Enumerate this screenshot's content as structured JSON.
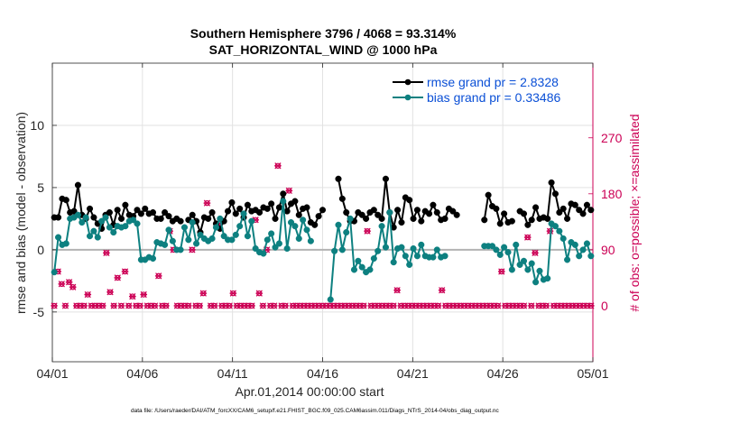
{
  "chart_data": {
    "type": "line",
    "title_line1": "Southern Hemisphere 3796 / 4068 = 93.314%",
    "title_line2": "SAT_HORIZONTAL_WIND @ 1000 hPa",
    "xlabel": "Apr.01,2014 00:00:00 start",
    "ylabel_left": "rmse and bias (model - observation)",
    "ylabel_right": "# of obs: o=possible; ×=assimilated",
    "footnote": "data file: /Users/raeder/DAI/ATM_forcXX/CAM6_setup/f.e21.FHIST_BGC.f09_025.CAM6assim.011/Diags_NTrS_2014-04/obs_diag_output.nc",
    "x_range": [
      0,
      30
    ],
    "ylim_left": [
      -9,
      15
    ],
    "ylim_right": [
      -90,
      390
    ],
    "x_tick_values": [
      0,
      5,
      10,
      15,
      20,
      25,
      30
    ],
    "x_tick_labels": [
      "04/01",
      "04/06",
      "04/11",
      "04/16",
      "04/21",
      "04/26",
      "05/01"
    ],
    "y_tick_values": [
      -5,
      0,
      5,
      10
    ],
    "y_tick_labels": [
      "-5",
      "0",
      "5",
      "10"
    ],
    "y2_tick_values": [
      0,
      90,
      180,
      270
    ],
    "y2_tick_labels": [
      "0",
      "90",
      "180",
      "270"
    ],
    "grid": true,
    "legend_position": "top-right",
    "colors": {
      "rmse": "#000000",
      "bias": "#0d8080",
      "obs": "#cc0055",
      "zero_line": "#b3b3b3"
    },
    "series": [
      {
        "name": "rmse grand pr = 2.8328",
        "axis": "left",
        "style": "line-marker",
        "values": [
          2.6,
          2.6,
          4.1,
          4.0,
          3.0,
          3.1,
          5.2,
          2.8,
          2.5,
          3.3,
          2.6,
          2.1,
          1.7,
          2.8,
          3.0,
          2.0,
          3.2,
          2.5,
          3.6,
          2.8,
          2.7,
          3.2,
          2.9,
          3.3,
          2.9,
          3.0,
          2.5,
          2.5,
          3.0,
          2.7,
          2.3,
          2.5,
          2.3,
          null,
          2.4,
          2.8,
          2.3,
          1.4,
          2.6,
          2.5,
          3.0,
          2.1,
          1.7,
          2.3,
          3.1,
          3.8,
          2.9,
          3.3,
          2.6,
          3.6,
          3.1,
          3.2,
          3.0,
          3.4,
          3.3,
          3.7,
          2.5,
          3.4,
          4.5,
          3.1,
          3.7,
          3.9,
          2.8,
          3.3,
          3.4,
          2.2,
          2.0,
          2.7,
          3.2,
          null,
          null,
          null,
          5.7,
          4.1,
          3.0,
          2.3,
          2.3,
          3.0,
          2.8,
          2.5,
          3.0,
          3.2,
          2.8,
          2.5,
          5.7,
          3.0,
          1.8,
          3.2,
          2.2,
          4.2,
          4.0,
          2.5,
          3.2,
          2.3,
          3.1,
          2.9,
          3.6,
          3.0,
          2.4,
          2.5,
          3.3,
          3.1,
          2.8,
          null,
          null,
          null,
          null,
          null,
          null,
          2.4,
          4.4,
          3.5,
          3.3,
          2.1,
          2.9,
          2.2,
          2.3,
          null,
          3.1,
          2.9,
          2.0,
          2.4,
          3.4,
          2.5,
          2.6,
          2.5,
          5.4,
          4.5,
          3.0,
          3.3,
          2.5,
          3.7,
          3.6,
          3.2,
          2.9,
          3.6,
          3.2
        ]
      },
      {
        "name": "bias grand pr = 0.33486",
        "axis": "left",
        "style": "line-marker",
        "values": [
          -1.8,
          1.0,
          0.4,
          0.5,
          2.5,
          2.6,
          2.8,
          2.2,
          2.6,
          1.1,
          1.5,
          1.0,
          2.3,
          2.6,
          1.8,
          1.4,
          1.9,
          1.8,
          1.9,
          2.3,
          2.4,
          2.1,
          -0.8,
          -0.8,
          -0.6,
          -0.7,
          0.6,
          0.5,
          0.4,
          1.6,
          0.7,
          0.0,
          0.0,
          1.8,
          0.8,
          2.2,
          0.5,
          1.2,
          0.9,
          0.7,
          0.9,
          1.8,
          2.5,
          1.1,
          0.8,
          0.8,
          1.2,
          1.9,
          2.9,
          1.1,
          2.3,
          0.1,
          -0.2,
          -0.3,
          0.8,
          1.3,
          0.2,
          0.5,
          3.9,
          0.1,
          2.2,
          1.9,
          0.9,
          2.4,
          1.6,
          0.7,
          null,
          null,
          null,
          null,
          -4.0,
          -0.1,
          2.0,
          0.0,
          1.4,
          2.5,
          -1.6,
          -0.9,
          -1.4,
          -1.8,
          -1.6,
          -0.7,
          -0.1,
          1.9,
          0.2,
          3.0,
          -1.0,
          0.1,
          0.2,
          -0.5,
          -1.2,
          0.1,
          -0.5,
          0.4,
          -0.5,
          -0.6,
          -0.6,
          0.0,
          -0.6,
          -0.5,
          null,
          null,
          null,
          null,
          null,
          null,
          null,
          null,
          null,
          0.3,
          0.3,
          0.3,
          0.0,
          -0.4,
          0.2,
          -0.2,
          -1.6,
          0.4,
          -1.2,
          -0.9,
          -1.6,
          -1.1,
          -2.6,
          -1.7,
          -2.4,
          -2.3,
          2.1,
          1.9,
          1.5,
          0.9,
          -0.8,
          0.6,
          0.4,
          -0.5,
          0.0,
          0.5,
          -0.5
        ]
      },
      {
        "name": "possible",
        "axis": "right",
        "style": "circle",
        "values": [
          0,
          55,
          35,
          0,
          38,
          30,
          0,
          0,
          0,
          18,
          0,
          0,
          0,
          0,
          85,
          22,
          0,
          45,
          0,
          55,
          0,
          15,
          0,
          0,
          18,
          0,
          0,
          0,
          48,
          0,
          0,
          120,
          90,
          0,
          0,
          0,
          0,
          90,
          0,
          0,
          20,
          165,
          0,
          0,
          130,
          0,
          0,
          0,
          20,
          0,
          0,
          0,
          0,
          0,
          138,
          20,
          0,
          90,
          0,
          0,
          225,
          0,
          0,
          185,
          0,
          0,
          0,
          0,
          0,
          0,
          0,
          0,
          0,
          0,
          0,
          0,
          0,
          0,
          0,
          0,
          0,
          0,
          0,
          0,
          120,
          0,
          0,
          0,
          0,
          0,
          0,
          0,
          25,
          0,
          0,
          0,
          0,
          0,
          0,
          0,
          0,
          0,
          0,
          0,
          25,
          0,
          0,
          0,
          0,
          0,
          0,
          0,
          0,
          0,
          0,
          0,
          0,
          0,
          0,
          0,
          55,
          0,
          0,
          0,
          0,
          0,
          0,
          110,
          0,
          85,
          0,
          0,
          0,
          120,
          0,
          0,
          0,
          0,
          0,
          0,
          0,
          0,
          0,
          0,
          0
        ]
      }
    ]
  }
}
